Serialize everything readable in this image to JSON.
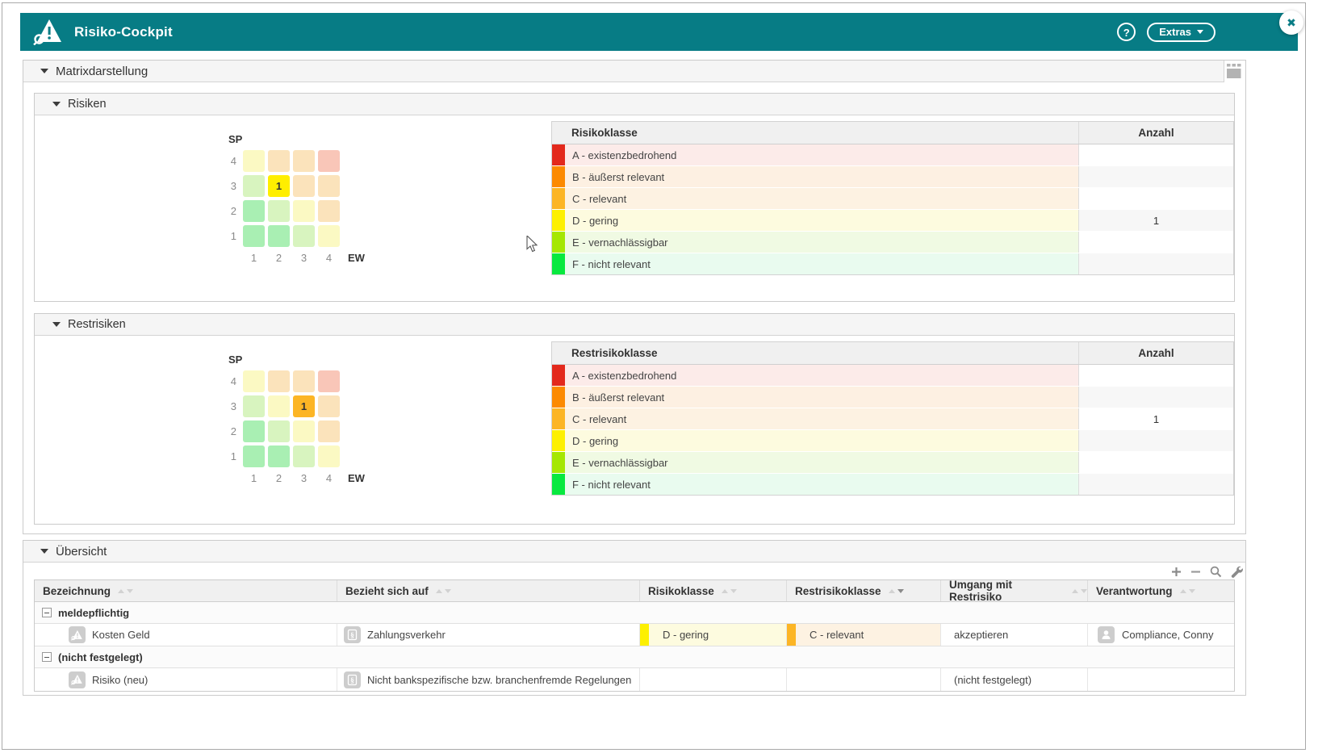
{
  "window": {
    "close_label": "✖"
  },
  "header": {
    "title": "Risiko-Cockpit",
    "help_label": "?",
    "extras_label": "Extras"
  },
  "colors": {
    "accent_teal": "#077c85",
    "matrix_palette": {
      "green2": "#a9efb3",
      "green1": "#d8f4bf",
      "yellow": "#fbf9c3",
      "orange": "#fbe3bb",
      "red": "#f9c6b8",
      "hl_yellow": "#ffee00",
      "hl_orange": "#fcb525"
    }
  },
  "classes": [
    {
      "label": "A - existenzbedrohend",
      "bar": "#e3291c",
      "tint": "#fcebe9"
    },
    {
      "label": "B - äußerst relevant",
      "bar": "#fc8a01",
      "tint": "#fdf0e2"
    },
    {
      "label": "C - relevant",
      "bar": "#fcb525",
      "tint": "#fdf2e2"
    },
    {
      "label": "D - gering",
      "bar": "#fdf001",
      "tint": "#fdfbdf"
    },
    {
      "label": "E - vernachlässigbar",
      "bar": "#a5e703",
      "tint": "#f0fae3"
    },
    {
      "label": "F - nicht relevant",
      "bar": "#08e93f",
      "tint": "#e9fbef"
    }
  ],
  "matrix_section": {
    "title": "Matrixdarstellung"
  },
  "risiken": {
    "title": "Risiken",
    "matrix": {
      "y_axis": "SP",
      "x_axis": "EW",
      "row_labels": [
        "4",
        "3",
        "2",
        "1"
      ],
      "col_labels": [
        "1",
        "2",
        "3",
        "4"
      ],
      "cells": [
        [
          "yellow",
          "orange",
          "orange",
          "red"
        ],
        [
          "green1",
          "hl_yellow",
          "orange",
          "orange"
        ],
        [
          "green2",
          "green1",
          "yellow",
          "orange"
        ],
        [
          "green2",
          "green2",
          "green1",
          "yellow"
        ]
      ],
      "values": [
        [
          "",
          "",
          "",
          ""
        ],
        [
          "",
          "1",
          "",
          ""
        ],
        [
          "",
          "",
          "",
          ""
        ],
        [
          "",
          "",
          "",
          ""
        ]
      ]
    },
    "table": {
      "class_header": "Risikoklasse",
      "count_header": "Anzahl",
      "counts": [
        "",
        "",
        "",
        "1",
        "",
        ""
      ]
    }
  },
  "restrisiken": {
    "title": "Restrisiken",
    "matrix": {
      "y_axis": "SP",
      "x_axis": "EW",
      "row_labels": [
        "4",
        "3",
        "2",
        "1"
      ],
      "col_labels": [
        "1",
        "2",
        "3",
        "4"
      ],
      "cells": [
        [
          "yellow",
          "orange",
          "orange",
          "red"
        ],
        [
          "green1",
          "yellow",
          "hl_orange",
          "orange"
        ],
        [
          "green2",
          "green1",
          "yellow",
          "orange"
        ],
        [
          "green2",
          "green2",
          "green1",
          "yellow"
        ]
      ],
      "values": [
        [
          "",
          "",
          "",
          ""
        ],
        [
          "",
          "",
          "1",
          ""
        ],
        [
          "",
          "",
          "",
          ""
        ],
        [
          "",
          "",
          "",
          ""
        ]
      ]
    },
    "table": {
      "class_header": "Restrisikoklasse",
      "count_header": "Anzahl",
      "counts": [
        "",
        "",
        "1",
        "",
        "",
        ""
      ]
    }
  },
  "uebersicht": {
    "title": "Übersicht",
    "toolbar": [
      "plus",
      "minus",
      "search",
      "wrench"
    ],
    "columns": [
      {
        "label": "Bezeichnung",
        "sorted": ""
      },
      {
        "label": "Bezieht sich auf",
        "sorted": ""
      },
      {
        "label": "Risikoklasse",
        "sorted": ""
      },
      {
        "label": "Restrisikoklasse",
        "sorted": "desc"
      },
      {
        "label": "Umgang mit Restrisiko",
        "sorted": ""
      },
      {
        "label": "Verantwortung",
        "sorted": ""
      }
    ],
    "rows": [
      {
        "type": "group",
        "label": "meldepflichtig"
      },
      {
        "type": "data",
        "bezeichnung": "Kosten Geld",
        "bezieht_sich_auf": "Zahlungsverkehr",
        "risikoklasse": "D - gering",
        "restrisikoklasse": "C - relevant",
        "umgang": "akzeptieren",
        "verantwortung": "Compliance, Conny"
      },
      {
        "type": "group",
        "label": "(nicht festgelegt)"
      },
      {
        "type": "data",
        "bezeichnung": "Risiko (neu)",
        "bezieht_sich_auf": "Nicht bankspezifische bzw. branchenfremde Regelungen",
        "risikoklasse": "",
        "restrisikoklasse": "",
        "umgang": "(nicht festgelegt)",
        "verantwortung": ""
      }
    ]
  }
}
